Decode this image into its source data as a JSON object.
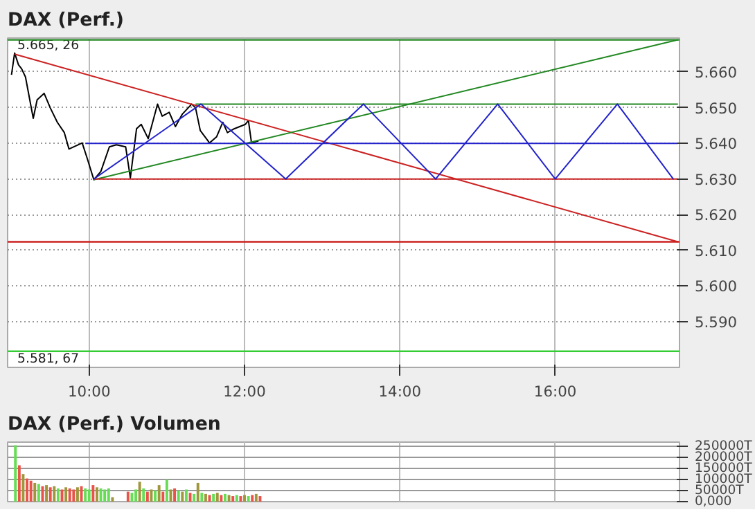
{
  "chart_data": [
    {
      "type": "line",
      "title": "DAX (Perf.)",
      "xlim": [
        8.95,
        17.6
      ],
      "ylim": [
        5.5772,
        5.6695
      ],
      "xticks": [
        {
          "value": 10,
          "label": "10:00"
        },
        {
          "value": 12,
          "label": "12:00"
        },
        {
          "value": 14,
          "label": "14:00"
        },
        {
          "value": 16,
          "label": "16:00"
        }
      ],
      "yticks": [
        {
          "value": 5.59,
          "label": "5.590"
        },
        {
          "value": 5.6,
          "label": "5.600"
        },
        {
          "value": 5.61,
          "label": "5.610"
        },
        {
          "value": 5.62,
          "label": "5.620"
        },
        {
          "value": 5.63,
          "label": "5.630"
        },
        {
          "value": 5.64,
          "label": "5.640"
        },
        {
          "value": 5.65,
          "label": "5.650"
        },
        {
          "value": 5.66,
          "label": "5.660"
        }
      ],
      "grid": true,
      "marker": "none",
      "line_style": "solid",
      "series": [
        {
          "color": "#000000",
          "x": [
            9.0,
            9.04,
            9.09,
            9.13,
            9.18,
            9.28,
            9.33,
            9.42,
            9.5,
            9.59,
            9.68,
            9.74,
            9.91,
            9.97,
            10.06,
            10.15,
            10.26,
            10.35,
            10.47,
            10.53,
            10.61,
            10.67,
            10.76,
            10.88,
            10.94,
            11.03,
            11.11,
            11.2,
            11.32,
            11.37,
            11.43,
            11.55,
            11.64,
            11.72,
            11.78,
            11.87,
            12.01,
            12.05,
            12.09,
            12.18
          ],
          "values": [
            5.6592,
            5.6653,
            5.662,
            5.6609,
            5.6586,
            5.647,
            5.6522,
            5.654,
            5.6499,
            5.6459,
            5.643,
            5.6384,
            5.6401,
            5.6361,
            5.6298,
            5.6321,
            5.639,
            5.6396,
            5.639,
            5.6303,
            5.6441,
            5.6453,
            5.6413,
            5.651,
            5.6476,
            5.6487,
            5.6447,
            5.6482,
            5.651,
            5.6499,
            5.6436,
            5.6401,
            5.6418,
            5.6459,
            5.643,
            5.6441,
            5.6453,
            5.6464,
            5.6401,
            5.6407
          ]
        },
        {
          "color": "#cc2222",
          "x": [
            9.04,
            17.58
          ],
          "values": [
            5.665,
            5.6124
          ]
        },
        {
          "color": "#228822",
          "x": [
            10.06,
            17.58
          ],
          "values": [
            5.6298,
            5.669
          ]
        },
        {
          "color": "#cc2222",
          "x": [
            10.06,
            17.58
          ],
          "values": [
            5.63,
            5.63
          ]
        },
        {
          "color": "#2222cc",
          "x": [
            9.95,
            17.58
          ],
          "values": [
            5.64,
            5.64
          ]
        },
        {
          "color": "#228822",
          "x": [
            11.37,
            17.58
          ],
          "values": [
            5.651,
            5.651
          ]
        },
        {
          "color": "#2222cc",
          "x": [
            10.06,
            11.44,
            12.53,
            13.53,
            14.46,
            15.26,
            16.0,
            16.8,
            17.52
          ],
          "values": [
            5.63,
            5.651,
            5.63,
            5.651,
            5.63,
            5.651,
            5.63,
            5.651,
            5.63
          ]
        }
      ],
      "ref_lines": [
        {
          "axis": "y",
          "value": 5.6124,
          "color": "#cc2222"
        },
        {
          "axis": "y",
          "value": 5.5817,
          "color": "#33cc33"
        },
        {
          "axis": "y",
          "value": 5.669,
          "color": "#228822"
        }
      ],
      "annotations": [
        {
          "text": "5.665, 26",
          "x": 9.04,
          "y": 5.6653
        },
        {
          "text": "5.581, 67",
          "x": 9.04,
          "y": 5.5817
        }
      ]
    },
    {
      "type": "bar",
      "title": "DAX (Perf.) Volumen",
      "tick_labels": "y",
      "xlim": [
        8.95,
        17.6
      ],
      "ylim": [
        0,
        270000
      ],
      "yticks": [
        {
          "value": 0,
          "label": "0,000"
        },
        {
          "value": 50000,
          "label": "50000T"
        },
        {
          "value": 100000,
          "label": "100000T"
        },
        {
          "value": 150000,
          "label": "150000T"
        },
        {
          "value": 200000,
          "label": "200000T"
        },
        {
          "value": 250000,
          "label": "250000T"
        }
      ],
      "grid": true,
      "x": [
        9.05,
        9.1,
        9.15,
        9.2,
        9.25,
        9.3,
        9.35,
        9.4,
        9.45,
        9.5,
        9.55,
        9.6,
        9.65,
        9.7,
        9.75,
        9.8,
        9.85,
        9.9,
        9.95,
        10.0,
        10.05,
        10.1,
        10.15,
        10.2,
        10.25,
        10.3,
        10.5,
        10.55,
        10.6,
        10.65,
        10.7,
        10.75,
        10.8,
        10.85,
        10.9,
        10.95,
        11.0,
        11.05,
        11.1,
        11.15,
        11.2,
        11.25,
        11.3,
        11.35,
        11.4,
        11.45,
        11.5,
        11.55,
        11.6,
        11.65,
        11.7,
        11.75,
        11.8,
        11.85,
        11.9,
        11.95,
        12.0,
        12.05,
        12.1,
        12.15,
        12.2
      ],
      "values": [
        256000,
        165000,
        125000,
        105000,
        95000,
        85000,
        80000,
        70000,
        75000,
        65000,
        70000,
        60000,
        55000,
        65000,
        60000,
        55000,
        65000,
        70000,
        60000,
        55000,
        75000,
        65000,
        60000,
        55000,
        60000,
        20000,
        45000,
        40000,
        55000,
        90000,
        60000,
        45000,
        55000,
        50000,
        75000,
        45000,
        100000,
        55000,
        60000,
        50000,
        45000,
        55000,
        40000,
        35000,
        85000,
        40000,
        35000,
        30000,
        35000,
        40000,
        30000,
        35000,
        30000,
        25000,
        30000,
        25000,
        30000,
        25000,
        30000,
        35000,
        25000
      ],
      "colors": [
        "#66dd55",
        "#e8534a",
        "#a0963c",
        "#e8534a",
        "#e8534a",
        "#a0963c",
        "#66dd55",
        "#e8534a",
        "#a0963c",
        "#e8534a",
        "#a0963c",
        "#66dd55",
        "#e8534a",
        "#a0963c",
        "#e8534a",
        "#e8534a",
        "#a0963c",
        "#e8534a",
        "#66dd55",
        "#66dd55",
        "#e8534a",
        "#a0963c",
        "#66dd55",
        "#66dd55",
        "#66dd55",
        "#a0963c",
        "#e8534a",
        "#66dd55",
        "#66dd55",
        "#a0963c",
        "#66dd55",
        "#e8534a",
        "#a0963c",
        "#66dd55",
        "#a0963c",
        "#e8534a",
        "#66dd55",
        "#a0963c",
        "#e8534a",
        "#66dd55",
        "#a0963c",
        "#66dd55",
        "#e8534a",
        "#66dd55",
        "#a0963c",
        "#66dd55",
        "#a0963c",
        "#e8534a",
        "#66dd55",
        "#a0963c",
        "#e8534a",
        "#66dd55",
        "#a0963c",
        "#e8534a",
        "#66dd55",
        "#e8534a",
        "#a0963c",
        "#66dd55",
        "#e8534a",
        "#a0963c",
        "#e8534a"
      ]
    }
  ]
}
